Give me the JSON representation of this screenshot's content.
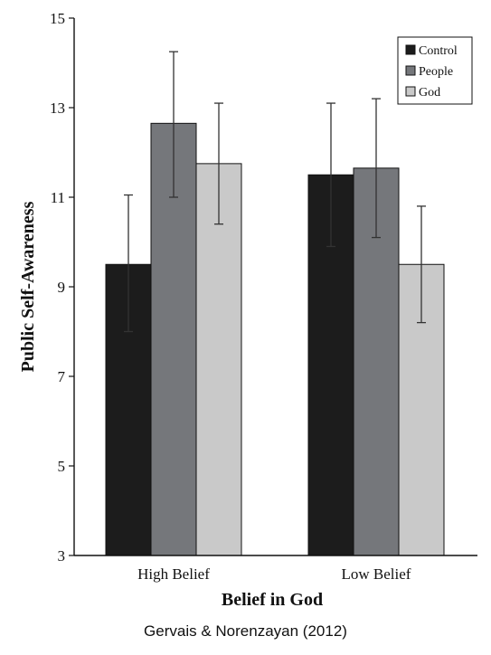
{
  "chart_data": {
    "type": "bar",
    "title": "",
    "xlabel": "Belief in God",
    "ylabel": "Public Self-Awareness",
    "ylim": [
      3,
      15
    ],
    "yticks": [
      3,
      5,
      7,
      9,
      11,
      13,
      15
    ],
    "categories": [
      "High Belief",
      "Low Belief"
    ],
    "series": [
      {
        "name": "Control",
        "color": "#1c1c1c",
        "values": [
          9.5,
          11.5
        ],
        "error_low": [
          8.0,
          9.9
        ],
        "error_high": [
          11.05,
          13.1
        ]
      },
      {
        "name": "People",
        "color": "#75777b",
        "values": [
          12.65,
          11.65
        ],
        "error_low": [
          11.0,
          10.1
        ],
        "error_high": [
          14.25,
          13.2
        ]
      },
      {
        "name": "God",
        "color": "#c9c9c9",
        "values": [
          11.75,
          9.5
        ],
        "error_low": [
          10.4,
          8.2
        ],
        "error_high": [
          13.1,
          10.8
        ]
      }
    ],
    "legend_position": "top-right",
    "grid": false
  },
  "caption": "Gervais & Norenzayan (2012)"
}
